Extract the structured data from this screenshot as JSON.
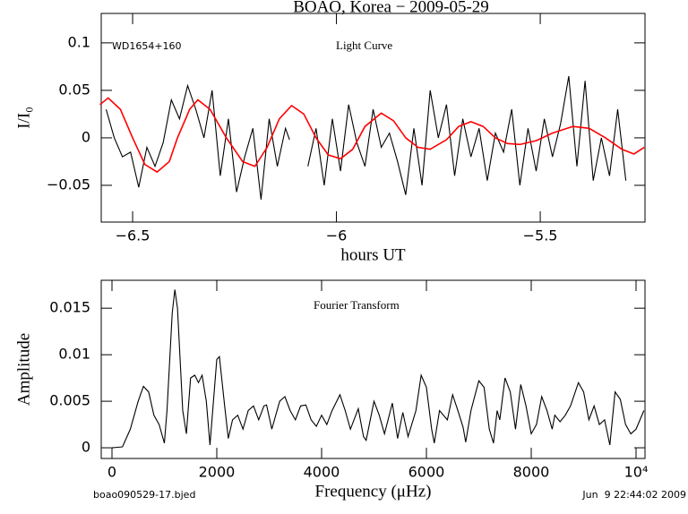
{
  "chart_data": [
    {
      "type": "line",
      "title": "BOAO, Korea − 2009-05-29",
      "xlabel": "hours UT",
      "ylabel": "I/I₀",
      "annotations": [
        "WD1654+160",
        "Light Curve"
      ],
      "xlim": [
        -6.577,
        -5.243
      ],
      "ylim": [
        -0.0887,
        0.131
      ],
      "xticks": [
        {
          "value": -6.5,
          "label": "−6.5"
        },
        {
          "value": -6,
          "label": "−6"
        },
        {
          "value": -5.5,
          "label": "−5.5"
        }
      ],
      "yticks": [
        {
          "value": -0.05,
          "label": "−0.05"
        },
        0,
        0.05,
        0.1
      ],
      "series": [
        {
          "color": "#000000",
          "x": [
            -6.565,
            -6.545,
            -6.525,
            -6.505,
            -6.485,
            -6.465,
            -6.445,
            -6.425,
            -6.405,
            -6.385,
            -6.365,
            -6.345,
            -6.325,
            -6.305,
            -6.285,
            -6.265,
            -6.245,
            -6.225,
            -6.205,
            -6.185,
            -6.165,
            -6.145,
            -6.125,
            -6.115,
            -6.09,
            -6.07,
            -6.05,
            -6.03,
            -6.01,
            -5.99,
            -5.97,
            -5.95,
            -5.93,
            -5.91,
            -5.89,
            -5.87,
            -5.85,
            -5.83,
            -5.81,
            -5.79,
            -5.77,
            -5.75,
            -5.73,
            -5.71,
            -5.69,
            -5.67,
            -5.65,
            -5.63,
            -5.61,
            -5.59,
            -5.57,
            -5.55,
            -5.53,
            -5.51,
            -5.49,
            -5.47,
            -5.45,
            -5.43,
            -5.41,
            -5.39,
            -5.37,
            -5.35,
            -5.33,
            -5.31,
            -5.29
          ],
          "values": [
            0.03,
            0.0,
            -0.02,
            -0.015,
            -0.052,
            -0.01,
            -0.03,
            -0.005,
            0.04,
            0.02,
            0.055,
            0.03,
            0.0,
            0.05,
            -0.04,
            0.02,
            -0.057,
            -0.02,
            0.01,
            -0.065,
            0.02,
            -0.03,
            0.01,
            -0.002,
            null,
            -0.03,
            0.01,
            -0.05,
            0.02,
            -0.035,
            0.035,
            -0.005,
            -0.03,
            0.03,
            -0.01,
            0.005,
            -0.025,
            -0.06,
            0.01,
            -0.05,
            0.05,
            0.0,
            0.035,
            -0.04,
            0.02,
            -0.02,
            0.01,
            -0.045,
            0.005,
            -0.015,
            0.03,
            -0.05,
            0.01,
            -0.035,
            0.02,
            -0.02,
            0.015,
            0.065,
            -0.03,
            0.06,
            -0.045,
            0.0,
            -0.04,
            0.03,
            -0.045
          ]
        },
        {
          "color": "#ff0000",
          "x": [
            -6.58,
            -6.56,
            -6.53,
            -6.5,
            -6.47,
            -6.44,
            -6.41,
            -6.39,
            -6.36,
            -6.34,
            -6.31,
            -6.27,
            -6.23,
            -6.2,
            -6.17,
            -6.14,
            -6.11,
            -6.08,
            -6.05,
            -6.02,
            -5.99,
            -5.96,
            -5.93,
            -5.89,
            -5.86,
            -5.83,
            -5.8,
            -5.77,
            -5.73,
            -5.7,
            -5.67,
            -5.64,
            -5.61,
            -5.58,
            -5.55,
            -5.51,
            -5.47,
            -5.42,
            -5.38,
            -5.34,
            -5.3,
            -5.27,
            -5.245
          ],
          "values": [
            0.035,
            0.042,
            0.03,
            0.0,
            -0.028,
            -0.036,
            -0.025,
            0.0,
            0.03,
            0.04,
            0.03,
            0.0,
            -0.025,
            -0.03,
            -0.01,
            0.02,
            0.034,
            0.025,
            0.0,
            -0.018,
            -0.022,
            -0.012,
            0.012,
            0.026,
            0.018,
            0.0,
            -0.01,
            -0.012,
            -0.002,
            0.012,
            0.017,
            0.012,
            0.0,
            -0.006,
            -0.007,
            -0.003,
            0.005,
            0.012,
            0.01,
            0.0,
            -0.012,
            -0.017,
            -0.01
          ]
        }
      ]
    },
    {
      "type": "line",
      "xlabel": "Frequency (μHz)",
      "ylabel": "Amplitude",
      "annotations": [
        "Fourier Transform"
      ],
      "file_name": "boao090529-17.bjed",
      "timestamp": "Jun  9 22:44:02 2009",
      "xlim": [
        -205,
        10171
      ],
      "ylim": [
        -0.00115,
        0.018
      ],
      "xticks": [
        0,
        2000,
        4000,
        6000,
        8000,
        {
          "value": 10000,
          "label": "10⁴"
        }
      ],
      "yticks": [
        0,
        0.005,
        0.01,
        0.015
      ],
      "series": [
        {
          "color": "#000000",
          "x": [
            0,
            200,
            350,
            500,
            600,
            700,
            800,
            900,
            1000,
            1050,
            1150,
            1200,
            1250,
            1350,
            1420,
            1500,
            1580,
            1650,
            1720,
            1800,
            1870,
            2000,
            2050,
            2150,
            2220,
            2300,
            2400,
            2500,
            2600,
            2700,
            2800,
            2900,
            2950,
            3050,
            3200,
            3300,
            3400,
            3500,
            3600,
            3700,
            3800,
            3900,
            4000,
            4100,
            4200,
            4350,
            4450,
            4550,
            4700,
            4800,
            4850,
            5000,
            5100,
            5200,
            5350,
            5450,
            5550,
            5650,
            5800,
            5900,
            6000,
            6100,
            6150,
            6250,
            6400,
            6500,
            6600,
            6700,
            6750,
            6850,
            7000,
            7100,
            7200,
            7280,
            7350,
            7400,
            7500,
            7600,
            7700,
            7800,
            7900,
            8000,
            8100,
            8200,
            8300,
            8400,
            8450,
            8550,
            8650,
            8750,
            8900,
            9000,
            9100,
            9200,
            9300,
            9400,
            9500,
            9600,
            9700,
            9800,
            9900,
            10000,
            10150
          ],
          "values": [
            0,
            0.0001,
            0.002,
            0.005,
            0.0066,
            0.006,
            0.0035,
            0.0025,
            0.0005,
            0.004,
            0.0145,
            0.017,
            0.015,
            0.004,
            0.0015,
            0.0075,
            0.0078,
            0.007,
            0.0078,
            0.005,
            0.0003,
            0.0095,
            0.0098,
            0.0045,
            0.001,
            0.003,
            0.0035,
            0.002,
            0.004,
            0.0045,
            0.003,
            0.0045,
            0.0046,
            0.002,
            0.005,
            0.0055,
            0.004,
            0.003,
            0.0045,
            0.0046,
            0.003,
            0.0023,
            0.0035,
            0.0025,
            0.004,
            0.0057,
            0.004,
            0.002,
            0.0042,
            0.0012,
            0.0008,
            0.005,
            0.0035,
            0.0015,
            0.0048,
            0.001,
            0.0038,
            0.0012,
            0.004,
            0.0078,
            0.0065,
            0.002,
            0.0005,
            0.004,
            0.003,
            0.0057,
            0.004,
            0.0022,
            0.0006,
            0.004,
            0.0072,
            0.0065,
            0.002,
            0.0005,
            0.004,
            0.003,
            0.0075,
            0.006,
            0.002,
            0.0068,
            0.0045,
            0.0015,
            0.0025,
            0.0055,
            0.004,
            0.002,
            0.0035,
            0.0028,
            0.0035,
            0.0045,
            0.007,
            0.006,
            0.003,
            0.0045,
            0.0025,
            0.003,
            0.0003,
            0.006,
            0.0052,
            0.0025,
            0.0015,
            0.002,
            0.004
          ]
        }
      ]
    }
  ]
}
